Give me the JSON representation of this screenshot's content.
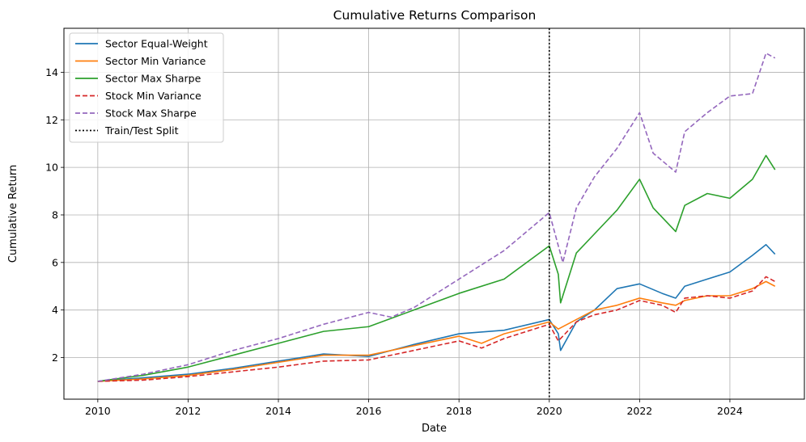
{
  "chart_data": {
    "type": "line",
    "title": "Cumulative Returns Comparison",
    "xlabel": "Date",
    "ylabel": "Cumulative Return",
    "xlim": [
      2009.25,
      2025.65
    ],
    "ylim": [
      0.25,
      15.85
    ],
    "x_ticks": [
      2010,
      2012,
      2014,
      2016,
      2018,
      2020,
      2022,
      2024
    ],
    "x_tick_labels": [
      "2010",
      "2012",
      "2014",
      "2016",
      "2018",
      "2020",
      "2022",
      "2024"
    ],
    "y_ticks": [
      2,
      4,
      6,
      8,
      10,
      12,
      14
    ],
    "y_tick_labels": [
      "2",
      "4",
      "6",
      "8",
      "10",
      "12",
      "14"
    ],
    "grid": true,
    "legend_position": "top-left",
    "series": [
      {
        "name": "Sector Equal-Weight",
        "color": "#1f77b4",
        "style": "solid",
        "x": [
          2010.0,
          2011.0,
          2012.0,
          2013.0,
          2014.0,
          2015.0,
          2016.0,
          2017.0,
          2018.0,
          2019.0,
          2020.0,
          2020.2,
          2020.25,
          2020.6,
          2021.0,
          2021.5,
          2022.0,
          2022.5,
          2022.8,
          2023.0,
          2023.5,
          2024.0,
          2024.5,
          2024.8,
          2025.0
        ],
        "y": [
          1.0,
          1.15,
          1.3,
          1.55,
          1.85,
          2.15,
          2.05,
          2.55,
          3.0,
          3.15,
          3.6,
          3.0,
          2.3,
          3.5,
          4.0,
          4.9,
          5.1,
          4.7,
          4.5,
          5.0,
          5.3,
          5.6,
          6.3,
          6.75,
          6.35
        ]
      },
      {
        "name": "Sector Min Variance",
        "color": "#ff7f0e",
        "style": "solid",
        "x": [
          2010.0,
          2011.0,
          2012.0,
          2013.0,
          2014.0,
          2015.0,
          2016.0,
          2017.0,
          2018.0,
          2018.5,
          2019.0,
          2020.0,
          2020.2,
          2020.6,
          2021.0,
          2021.5,
          2022.0,
          2022.5,
          2022.8,
          2023.0,
          2023.5,
          2024.0,
          2024.5,
          2024.8,
          2025.0
        ],
        "y": [
          1.0,
          1.1,
          1.25,
          1.5,
          1.8,
          2.1,
          2.1,
          2.5,
          2.9,
          2.6,
          3.0,
          3.5,
          3.2,
          3.6,
          4.0,
          4.2,
          4.5,
          4.3,
          4.2,
          4.4,
          4.6,
          4.6,
          4.9,
          5.2,
          5.0
        ]
      },
      {
        "name": "Sector Max Sharpe",
        "color": "#2ca02c",
        "style": "solid",
        "x": [
          2010.0,
          2011.0,
          2012.0,
          2013.0,
          2014.0,
          2015.0,
          2016.0,
          2017.0,
          2018.0,
          2019.0,
          2020.0,
          2020.2,
          2020.25,
          2020.6,
          2021.0,
          2021.5,
          2022.0,
          2022.3,
          2022.8,
          2023.0,
          2023.5,
          2024.0,
          2024.5,
          2024.8,
          2025.0
        ],
        "y": [
          1.0,
          1.25,
          1.6,
          2.1,
          2.6,
          3.1,
          3.3,
          4.0,
          4.7,
          5.3,
          6.7,
          5.5,
          4.3,
          6.4,
          7.2,
          8.2,
          9.5,
          8.3,
          7.3,
          8.4,
          8.9,
          8.7,
          9.5,
          10.5,
          9.9
        ]
      },
      {
        "name": "Stock Min Variance",
        "color": "#d62728",
        "style": "dashed",
        "x": [
          2010.0,
          2011.0,
          2012.0,
          2013.0,
          2014.0,
          2015.0,
          2016.0,
          2017.0,
          2018.0,
          2018.5,
          2019.0,
          2020.0,
          2020.2,
          2020.6,
          2021.0,
          2021.5,
          2022.0,
          2022.5,
          2022.8,
          2023.0,
          2023.5,
          2024.0,
          2024.5,
          2024.8,
          2025.0
        ],
        "y": [
          1.0,
          1.05,
          1.2,
          1.4,
          1.6,
          1.85,
          1.9,
          2.3,
          2.7,
          2.4,
          2.8,
          3.4,
          2.7,
          3.5,
          3.8,
          4.0,
          4.4,
          4.2,
          3.9,
          4.5,
          4.6,
          4.5,
          4.8,
          5.4,
          5.2
        ]
      },
      {
        "name": "Stock Max Sharpe",
        "color": "#9467bd",
        "style": "dashed",
        "x": [
          2010.0,
          2011.0,
          2012.0,
          2013.0,
          2014.0,
          2015.0,
          2016.0,
          2016.5,
          2017.0,
          2018.0,
          2019.0,
          2020.0,
          2020.2,
          2020.3,
          2020.6,
          2021.0,
          2021.5,
          2022.0,
          2022.3,
          2022.8,
          2023.0,
          2023.5,
          2024.0,
          2024.5,
          2024.8,
          2025.0
        ],
        "y": [
          1.0,
          1.3,
          1.7,
          2.3,
          2.8,
          3.4,
          3.9,
          3.7,
          4.1,
          5.3,
          6.5,
          8.1,
          6.7,
          6.0,
          8.3,
          9.6,
          10.8,
          12.3,
          10.6,
          9.8,
          11.5,
          12.3,
          13.0,
          13.1,
          14.8,
          14.6
        ]
      }
    ],
    "vlines": [
      {
        "name": "Train/Test Split",
        "x": 2020.0,
        "color": "#000000",
        "style": "dotted"
      }
    ]
  }
}
